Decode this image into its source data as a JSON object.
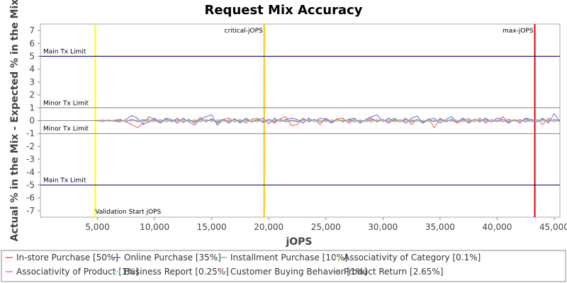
{
  "chart_data": {
    "type": "line",
    "title": "Request Mix Accuracy",
    "xlabel": "jOPS",
    "ylabel": "Actual % in the Mix - Expected % in the Mix",
    "xlim": [
      0,
      45500
    ],
    "ylim": [
      -7.5,
      7.5
    ],
    "x_ticks": [
      5000,
      10000,
      15000,
      20000,
      25000,
      30000,
      35000,
      40000,
      45000
    ],
    "x_tick_labels": [
      "5,000",
      "10,000",
      "15,000",
      "20,000",
      "25,000",
      "30,000",
      "35,000",
      "40,000",
      "45,000"
    ],
    "y_ticks": [
      -7,
      -6,
      -5,
      -4,
      -3,
      -2,
      -1,
      0,
      1,
      2,
      3,
      4,
      5,
      6,
      7
    ],
    "y_tick_labels": [
      "-7",
      "-6",
      "-5",
      "-4",
      "-3",
      "-2",
      "-1",
      "0",
      "1",
      "2",
      "3",
      "4",
      "5",
      "6",
      "7"
    ],
    "grid": false,
    "legend_position": "bottom",
    "limit_lines": [
      {
        "label": "Main Tx Limit",
        "y": 5,
        "color": "#000080"
      },
      {
        "label": "Minor Tx Limit",
        "y": 1,
        "color": "#808080"
      },
      {
        "label": "Minor Tx Limit",
        "y": -1,
        "color": "#808080"
      },
      {
        "label": "Main Tx Limit",
        "y": -5,
        "color": "#000080"
      }
    ],
    "markers": [
      {
        "label": "Validation Start jOPS",
        "x": 4800,
        "color": "#ffff00"
      },
      {
        "label": "critical-jOPS",
        "x": 19600,
        "color": "#ffc000"
      },
      {
        "label": "max-jOPS",
        "x": 43300,
        "color": "#e00000"
      }
    ],
    "x": [
      0,
      1000,
      2000,
      3000,
      4000,
      4800,
      5500,
      6000,
      6500,
      7000,
      7500,
      8000,
      8500,
      9000,
      9500,
      10000,
      10500,
      11000,
      11500,
      12000,
      12500,
      13000,
      13500,
      14000,
      14500,
      15000,
      15500,
      16000,
      16500,
      17000,
      17500,
      18000,
      18500,
      19000,
      19500,
      20000,
      20500,
      21000,
      21500,
      22000,
      22500,
      23000,
      23500,
      24000,
      24500,
      25000,
      25500,
      26000,
      26500,
      27000,
      27500,
      28000,
      28500,
      29000,
      29500,
      30000,
      30500,
      31000,
      31500,
      32000,
      32500,
      33000,
      33500,
      34000,
      34500,
      35000,
      35500,
      36000,
      36500,
      37000,
      37500,
      38000,
      38500,
      39000,
      39500,
      40000,
      40500,
      41000,
      41500,
      42000,
      42500,
      43000,
      43500,
      44000,
      44500,
      45000,
      45500
    ],
    "series": [
      {
        "name": "In-store Purchase [50%]",
        "color": "#ff5555",
        "values": [
          0,
          0,
          0,
          0,
          0,
          0,
          0.05,
          -0.05,
          0.05,
          0.1,
          -0.1,
          -0.3,
          -0.55,
          -0.2,
          0.3,
          0.1,
          -0.2,
          0.15,
          -0.1,
          0.2,
          -0.15,
          0.1,
          -0.2,
          0.25,
          -0.1,
          0.15,
          -0.2,
          0.1,
          0.2,
          -0.1,
          0.05,
          -0.2,
          0.1,
          0.2,
          -0.15,
          0.1,
          -0.2,
          0.15,
          0.3,
          -0.4,
          -0.3,
          0.2,
          -0.1,
          0.1,
          -0.3,
          0.2,
          -0.1,
          0.15,
          0.2,
          -0.2,
          0.1,
          -0.15,
          0.05,
          0.2,
          -0.1,
          0.1,
          -0.2,
          0.15,
          -0.1,
          0.2,
          -0.3,
          0.1,
          -0.2,
          0.15,
          -0.55,
          0.2,
          -0.1,
          0.1,
          -0.2,
          0.1,
          0.15,
          -0.1,
          0.2,
          -0.2,
          0.1,
          -0.1,
          0.3,
          -0.15,
          0.1,
          -0.2,
          0.2,
          -0.1,
          0.1,
          -0.3,
          0.2,
          -0.1,
          0.1
        ]
      },
      {
        "name": "Online Purchase [35%]",
        "color": "#6666ff",
        "values": [
          0,
          0,
          0,
          0,
          0,
          0,
          -0.05,
          0.05,
          -0.05,
          -0.1,
          0.1,
          0.4,
          0.2,
          -0.3,
          -0.1,
          0.2,
          -0.2,
          0.2,
          0.1,
          -0.2,
          0.2,
          -0.1,
          -0.35,
          0.1,
          0.3,
          0.45,
          -0.35,
          0.1,
          -0.2,
          0.15,
          -0.2,
          0.2,
          -0.1,
          0.05,
          0.2,
          -0.25,
          0.2,
          -0.1,
          0.1,
          0.2,
          0.1,
          -0.2,
          0.2,
          -0.1,
          0.2,
          0.1,
          -0.2,
          0.1,
          -0.1,
          0.1,
          0.2,
          -0.2,
          0.1,
          0.3,
          0.45,
          -0.1,
          0.2,
          -0.1,
          0.1,
          -0.2,
          0.2,
          0.35,
          -0.2,
          0.1,
          0.2,
          -0.2,
          0.1,
          0.3,
          -0.1,
          0.2,
          -0.2,
          0.1,
          -0.1,
          0.2,
          -0.1,
          0.2,
          0.1,
          -0.2,
          0.1,
          -0.1,
          0.2,
          0.1,
          -0.1,
          0.2,
          -0.2,
          0.55,
          -0.1
        ]
      },
      {
        "name": "Installment Purchase [10%]",
        "color": "#55dd55",
        "values": [
          0,
          0,
          0,
          0,
          0,
          0,
          0,
          0.02,
          -0.02,
          0.05,
          -0.05,
          0.1,
          -0.1,
          0.05,
          0.1,
          -0.05,
          0.1,
          -0.1,
          0.05,
          -0.05,
          0.1,
          -0.05,
          0.05,
          -0.1,
          0.1,
          -0.05,
          0.05,
          0.1,
          -0.05,
          0.05,
          -0.1,
          0.05,
          -0.05,
          0.1,
          -0.05,
          0.05,
          -0.1,
          0.1,
          -0.05,
          0.05,
          -0.1,
          0.15,
          -0.05,
          0.1,
          -0.1,
          0.05,
          -0.05,
          0.1,
          -0.1,
          0.05,
          0.1,
          -0.05,
          0.05,
          -0.1,
          0.1,
          -0.05,
          0.05,
          0.2,
          -0.05,
          0.1,
          -0.1,
          0.05,
          -0.05,
          0.1,
          -0.05,
          0.05,
          -0.1,
          0.1,
          -0.05,
          0.05,
          -0.1,
          0.05,
          0.1,
          -0.05,
          0.05,
          -0.1,
          0.1,
          -0.05,
          0.05,
          -0.05,
          0.1,
          -0.1,
          0.05,
          0.1,
          -0.05,
          0.05,
          0
        ]
      },
      {
        "name": "Associativity of Category [0.1%]",
        "color": "#ffff55",
        "values": [
          0,
          0,
          0,
          0,
          0,
          0,
          0,
          0.01,
          -0.01,
          0.01,
          0,
          0.01,
          -0.01,
          0,
          0.01,
          -0.01,
          0.01,
          0,
          -0.01,
          0.01,
          0,
          0.01,
          -0.01,
          0,
          0.01,
          -0.01,
          0.01,
          0,
          -0.01,
          0.01,
          0,
          0.01,
          -0.01,
          0,
          0.01,
          -0.01,
          0.01,
          0,
          -0.01,
          0.01,
          0,
          0.01,
          -0.01,
          0,
          0.01,
          -0.01,
          0.01,
          0,
          -0.01,
          0.01,
          0,
          0.01,
          -0.01,
          0,
          0.01,
          -0.01,
          0.01,
          0,
          -0.01,
          0.01,
          0,
          0.01,
          -0.01,
          0,
          0.01,
          -0.01,
          0.01,
          0,
          -0.01,
          0.01,
          0,
          0.01,
          -0.01,
          0,
          0.01,
          -0.01,
          0.01,
          0,
          -0.01,
          0.01,
          0,
          0.01,
          -0.01,
          0,
          0.01,
          -0.01,
          0
        ]
      },
      {
        "name": "Associativity of Product [1%]",
        "color": "#ee66ee",
        "values": [
          0,
          0,
          0,
          0,
          0,
          0,
          0.02,
          -0.02,
          0.03,
          -0.03,
          0.05,
          -0.05,
          0.1,
          -0.05,
          0.05,
          -0.1,
          0.05,
          -0.05,
          0.1,
          -0.05,
          0.05,
          -0.1,
          0.05,
          -0.05,
          0.1,
          -0.05,
          0.05,
          -0.1,
          0.05,
          -0.05,
          0.1,
          -0.05,
          0.05,
          -0.1,
          0.05,
          -0.05,
          0.1,
          -0.05,
          0.05,
          -0.1,
          0.05,
          -0.05,
          0.1,
          -0.05,
          0.05,
          -0.1,
          0.05,
          -0.05,
          0.1,
          -0.05,
          0.05,
          -0.1,
          0.05,
          -0.05,
          0.1,
          -0.05,
          0.05,
          -0.1,
          0.05,
          -0.05,
          0.1,
          -0.05,
          0.05,
          -0.1,
          0.05,
          -0.05,
          0.1,
          -0.05,
          0.05,
          -0.1,
          0.05,
          -0.05,
          0.1,
          -0.05,
          0.05,
          -0.1,
          0.05,
          -0.05,
          0.1,
          -0.05,
          0.05,
          -0.1,
          0.05,
          -0.05,
          0.1,
          -0.05,
          0
        ]
      },
      {
        "name": "Business Report [0.25%]",
        "color": "#66eeee",
        "values": [
          0,
          0,
          0,
          0,
          0,
          0,
          0,
          0.01,
          -0.02,
          0.02,
          -0.01,
          0.02,
          -0.02,
          0.01,
          0.02,
          -0.02,
          0.02,
          -0.01,
          0.02,
          -0.02,
          0.01,
          0.02,
          -0.02,
          0.02,
          -0.01,
          0.02,
          -0.02,
          0.01,
          0.02,
          -0.02,
          0.02,
          -0.01,
          0.02,
          -0.02,
          0.01,
          0.02,
          -0.02,
          0.02,
          -0.01,
          0.02,
          -0.02,
          0.01,
          0.02,
          -0.02,
          0.02,
          -0.01,
          0.02,
          -0.02,
          0.01,
          0.02,
          -0.02,
          0.02,
          -0.01,
          0.02,
          -0.02,
          0.01,
          0.02,
          -0.02,
          0.02,
          -0.01,
          0.02,
          -0.02,
          0.01,
          0.02,
          -0.02,
          0.02,
          -0.01,
          0.02,
          -0.02,
          0.01,
          0.02,
          -0.02,
          0.02,
          -0.01,
          0.02,
          -0.02,
          0.01,
          0.02,
          -0.02,
          0.02,
          -0.01,
          0.02,
          -0.02,
          0.01,
          0.02,
          -0.02,
          0
        ]
      },
      {
        "name": "Customer Buying Behavior [1%]",
        "color": "#ffaaaa",
        "values": [
          0,
          0,
          0,
          0,
          0,
          0,
          0.03,
          -0.03,
          0.05,
          -0.05,
          0.08,
          -0.05,
          0.1,
          -0.08,
          0.05,
          -0.1,
          0.08,
          -0.05,
          0.1,
          -0.08,
          0.05,
          -0.1,
          0.08,
          -0.05,
          0.1,
          -0.08,
          0.05,
          -0.1,
          0.08,
          -0.05,
          0.1,
          -0.08,
          0.05,
          -0.1,
          0.08,
          -0.05,
          0.1,
          -0.08,
          0.05,
          -0.1,
          0.08,
          -0.05,
          0.1,
          -0.08,
          0.05,
          -0.1,
          0.08,
          -0.05,
          0.1,
          -0.08,
          0.05,
          -0.1,
          0.08,
          -0.05,
          0.1,
          -0.08,
          0.05,
          -0.1,
          0.08,
          -0.05,
          0.1,
          -0.08,
          0.05,
          -0.1,
          0.08,
          -0.05,
          0.1,
          -0.08,
          0.05,
          -0.1,
          0.08,
          -0.05,
          0.1,
          -0.08,
          0.05,
          -0.1,
          0.08,
          -0.05,
          0.1,
          -0.08,
          0.05,
          -0.1,
          0.08,
          -0.05,
          0.1,
          -0.08,
          0
        ]
      },
      {
        "name": "Product Return [2.65%]",
        "color": "#888888",
        "values": [
          0,
          0,
          0,
          0,
          0,
          0,
          -0.02,
          0.03,
          -0.05,
          0.05,
          -0.08,
          0.1,
          -0.05,
          0.08,
          -0.1,
          0.05,
          -0.08,
          0.1,
          -0.05,
          0.08,
          -0.1,
          0.05,
          -0.08,
          0.1,
          -0.05,
          0.08,
          -0.1,
          0.05,
          -0.08,
          0.1,
          -0.05,
          0.08,
          -0.1,
          0.05,
          -0.08,
          0.1,
          -0.05,
          0.08,
          -0.1,
          0.05,
          -0.08,
          0.1,
          -0.05,
          0.08,
          -0.1,
          0.05,
          -0.08,
          0.1,
          -0.05,
          0.08,
          -0.1,
          0.05,
          -0.08,
          0.1,
          -0.05,
          0.08,
          -0.1,
          0.05,
          -0.08,
          0.1,
          -0.05,
          0.08,
          -0.1,
          0.05,
          -0.08,
          0.1,
          -0.05,
          0.08,
          -0.1,
          0.05,
          -0.08,
          0.1,
          -0.05,
          0.08,
          -0.1,
          0.05,
          -0.08,
          0.1,
          -0.05,
          0.08,
          -0.1,
          0.05,
          -0.08,
          0.1,
          -0.05,
          0.08,
          0
        ]
      }
    ]
  }
}
